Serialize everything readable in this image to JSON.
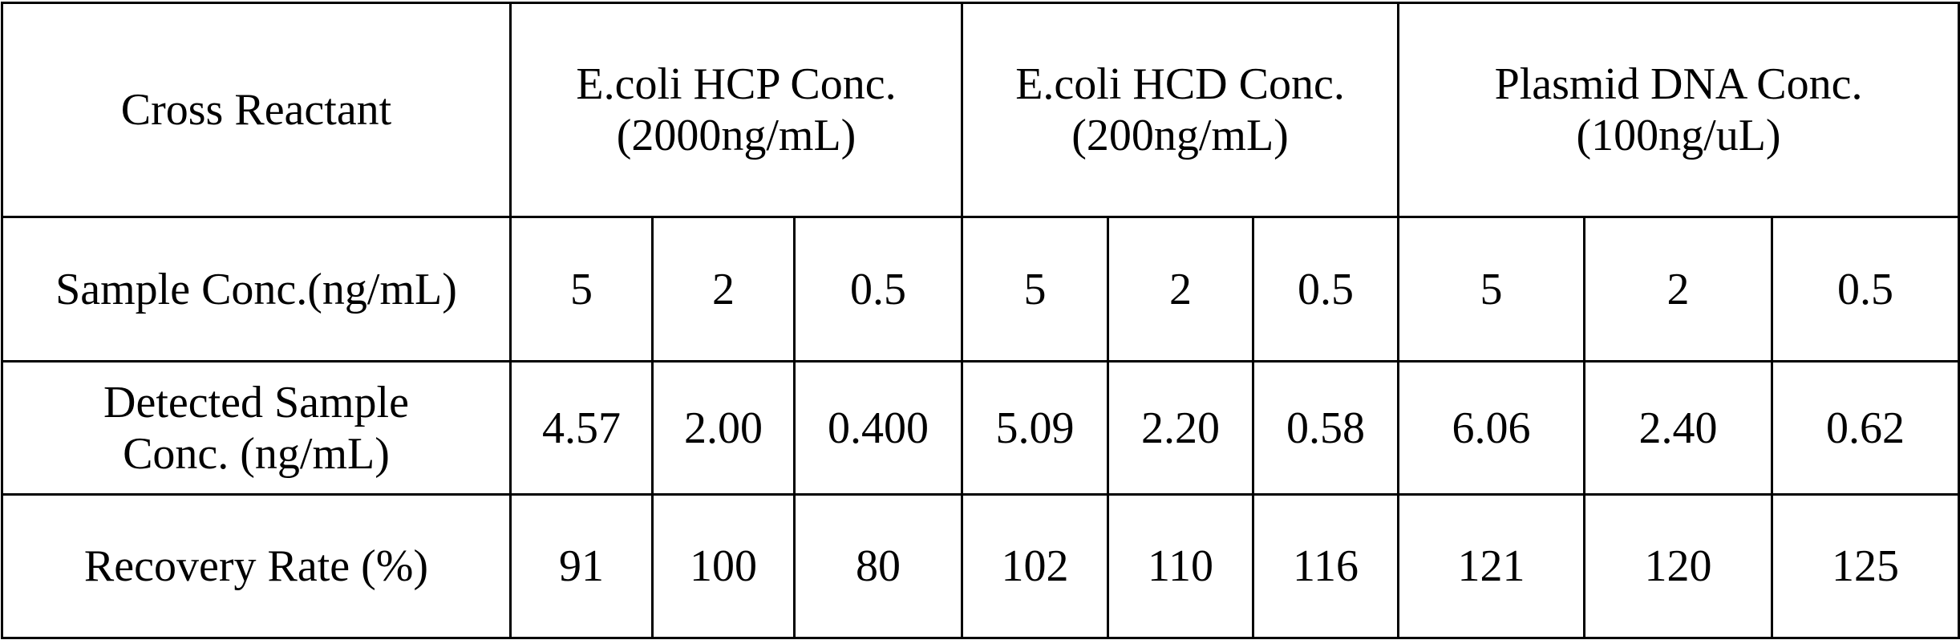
{
  "table": {
    "header": [
      [
        "Cross Reactant"
      ],
      [
        "E.coli HCP Conc.",
        "(2000ng/mL)"
      ],
      [
        "E.coli HCD Conc.",
        "(200ng/mL)"
      ],
      [
        "Plasmid DNA Conc.",
        "(100ng/uL)"
      ]
    ],
    "rows": [
      {
        "label": [
          "Sample Conc.(ng/mL)"
        ],
        "cells": [
          "5",
          "2",
          "0.5",
          "5",
          "2",
          "0.5",
          "5",
          "2",
          "0.5"
        ]
      },
      {
        "label": [
          "Detected Sample",
          "Conc. (ng/mL)"
        ],
        "cells": [
          "4.57",
          "2.00",
          "0.400",
          "5.09",
          "2.20",
          "0.58",
          "6.06",
          "2.40",
          "0.62"
        ]
      },
      {
        "label": [
          "Recovery Rate (%)"
        ],
        "cells": [
          "91",
          "100",
          "80",
          "102",
          "110",
          "116",
          "121",
          "120",
          "125"
        ]
      }
    ]
  }
}
